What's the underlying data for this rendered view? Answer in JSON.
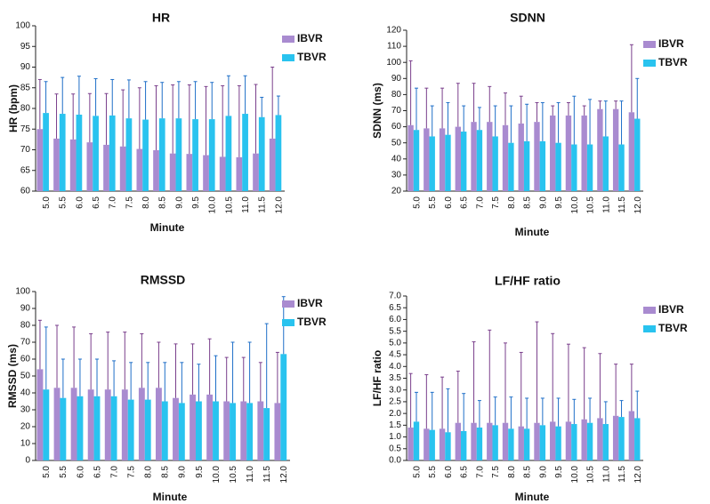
{
  "colors": {
    "ibvr": "#a98bd0",
    "tbvr": "#29c3ef",
    "ibvr_err": "#7a3f8c",
    "tbvr_err": "#1f6fc8"
  },
  "chart_data": [
    {
      "type": "bar",
      "title": "HR",
      "xlabel": "Minute",
      "ylabel": "HR (bpm)",
      "ylim": [
        60,
        100
      ],
      "yticks": [
        60,
        65,
        70,
        75,
        80,
        85,
        90,
        95,
        100
      ],
      "categories": [
        "5.0",
        "5.5",
        "6.0",
        "6.5",
        "7.0",
        "7.5",
        "8.0",
        "8.5",
        "9.0",
        "9.5",
        "10.0",
        "10.5",
        "11.0",
        "11.5",
        "12.0"
      ],
      "legend": [
        "IBVR",
        "TBVR"
      ],
      "series": [
        {
          "name": "IBVR",
          "values": [
            75,
            72.7,
            72.5,
            71.8,
            71.2,
            70.8,
            70.2,
            69.9,
            69.1,
            69.0,
            68.7,
            68.3,
            68.2,
            69.1,
            72.7
          ],
          "err": [
            87,
            83.5,
            83.5,
            83.6,
            83.6,
            84.5,
            85,
            85.5,
            85.7,
            85.7,
            85.3,
            85.5,
            85.5,
            85.8,
            90
          ]
        },
        {
          "name": "TBVR",
          "values": [
            78.9,
            78.7,
            78.5,
            78.2,
            78.3,
            77.6,
            77.3,
            77.6,
            77.6,
            77.4,
            77.4,
            78.2,
            78.7,
            77.9,
            78.4
          ],
          "err": [
            86.5,
            87.5,
            87.8,
            87.2,
            87,
            86.9,
            86.5,
            86.3,
            86.5,
            86.5,
            86.3,
            87.9,
            87.9,
            82.7,
            83
          ]
        }
      ]
    },
    {
      "type": "bar",
      "title": "SDNN",
      "xlabel": "Minute",
      "ylabel": "SDNN (ms)",
      "ylim": [
        20,
        120
      ],
      "yticks": [
        20,
        30,
        40,
        50,
        60,
        70,
        80,
        90,
        100,
        110,
        120
      ],
      "categories": [
        "5.0",
        "5.5",
        "6.0",
        "6.5",
        "7.0",
        "7.5",
        "8.0",
        "8.5",
        "9.0",
        "9.5",
        "10.0",
        "10.5",
        "11.0",
        "11.5",
        "12.0"
      ],
      "legend": [
        "IBVR",
        "TBVR"
      ],
      "series": [
        {
          "name": "IBVR",
          "values": [
            61,
            59,
            59,
            60,
            63,
            63,
            61,
            62,
            63,
            67,
            67,
            67,
            71,
            71,
            69
          ],
          "err": [
            101,
            84,
            84,
            87,
            87,
            85,
            81,
            79,
            75,
            73,
            75,
            73,
            76,
            76,
            111
          ]
        },
        {
          "name": "TBVR",
          "values": [
            58,
            54,
            55,
            57,
            58,
            54,
            50,
            51,
            51,
            50,
            49,
            49,
            54,
            49,
            65
          ],
          "err": [
            84,
            73,
            75,
            73,
            72,
            73,
            73,
            74,
            75,
            75,
            79,
            77,
            76,
            76,
            90
          ]
        }
      ]
    },
    {
      "type": "bar",
      "title": "RMSSD",
      "xlabel": "Minute",
      "ylabel": "RMSSD (ms)",
      "ylim": [
        0,
        100
      ],
      "yticks": [
        0,
        10,
        20,
        30,
        40,
        50,
        60,
        70,
        80,
        90,
        100
      ],
      "categories": [
        "5.0",
        "5.5",
        "6.0",
        "6.5",
        "7.0",
        "7.5",
        "8.0",
        "8.5",
        "9.0",
        "9.5",
        "10.0",
        "10.5",
        "11.0",
        "11.5",
        "12.0"
      ],
      "legend": [
        "IBVR",
        "TBVR"
      ],
      "series": [
        {
          "name": "IBVR",
          "values": [
            54,
            43,
            43,
            42,
            42,
            42,
            43,
            43,
            37,
            39,
            39,
            35,
            35,
            35,
            34
          ],
          "err": [
            83,
            80,
            79,
            75,
            76,
            76,
            75,
            70,
            69,
            69,
            72,
            61,
            61,
            58,
            64
          ]
        },
        {
          "name": "TBVR",
          "values": [
            42,
            37,
            38,
            38,
            38,
            36,
            36,
            35,
            34,
            35,
            35,
            34,
            34,
            31,
            63
          ],
          "err": [
            79,
            60,
            60,
            60,
            59,
            58,
            58,
            58,
            58,
            57,
            62,
            70,
            70,
            81,
            97
          ]
        }
      ]
    },
    {
      "type": "bar",
      "title": "LF/HF ratio",
      "xlabel": "Minute",
      "ylabel": "LF/HF ratio",
      "ylim": [
        0,
        7.0
      ],
      "yticks": [
        0,
        0.5,
        1,
        1.5,
        2,
        2.5,
        3,
        3.5,
        4,
        4.5,
        5,
        5.5,
        6,
        6.5,
        7
      ],
      "categories": [
        "5.0",
        "5.5",
        "6.0",
        "6.5",
        "7.0",
        "7.5",
        "8.0",
        "8.5",
        "9.0",
        "9.5",
        "10.0",
        "10.5",
        "11.0",
        "11.5",
        "12.0"
      ],
      "legend": [
        "IBVR",
        "TBVR"
      ],
      "series": [
        {
          "name": "IBVR",
          "values": [
            1.4,
            1.35,
            1.35,
            1.6,
            1.6,
            1.6,
            1.6,
            1.45,
            1.6,
            1.65,
            1.65,
            1.75,
            1.8,
            1.9,
            2.1
          ],
          "err": [
            3.7,
            3.65,
            3.55,
            3.8,
            5.05,
            5.55,
            5.0,
            4.6,
            5.9,
            5.4,
            4.95,
            4.8,
            4.55,
            4.1,
            4.1
          ]
        },
        {
          "name": "TBVR",
          "values": [
            1.65,
            1.3,
            1.2,
            1.25,
            1.4,
            1.5,
            1.35,
            1.35,
            1.5,
            1.45,
            1.55,
            1.6,
            1.55,
            1.85,
            1.8
          ],
          "err": [
            2.9,
            2.9,
            3.05,
            2.85,
            2.55,
            2.7,
            2.7,
            2.65,
            2.65,
            2.65,
            2.6,
            2.65,
            2.5,
            2.55,
            2.95
          ]
        }
      ]
    }
  ]
}
